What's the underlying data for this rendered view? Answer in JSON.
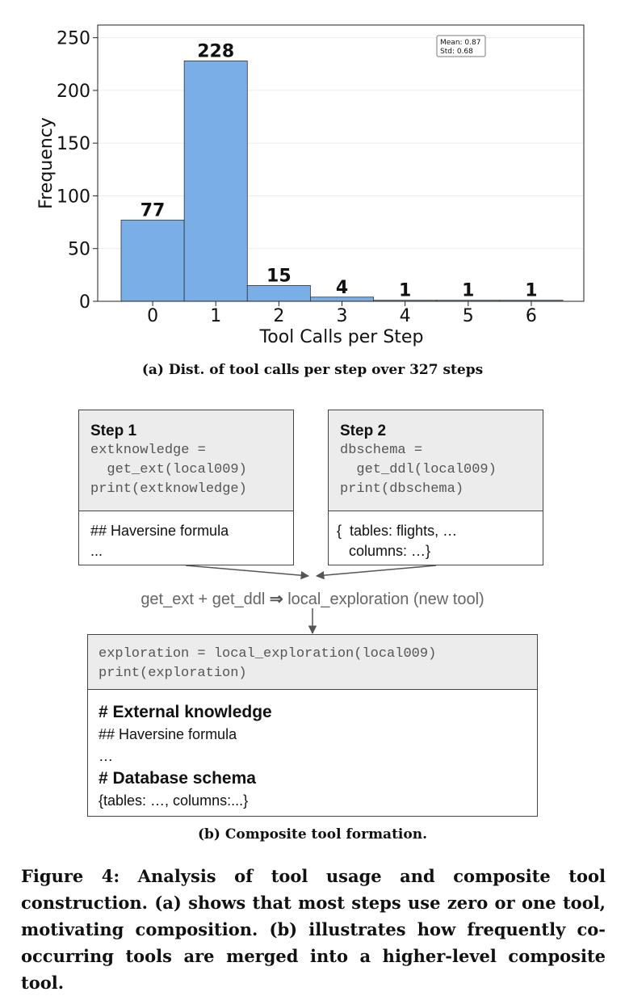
{
  "panel_a": {
    "caption": "(a) Dist. of tool calls per step over 327 steps"
  },
  "chart_data": {
    "type": "bar",
    "categories": [
      "0",
      "1",
      "2",
      "3",
      "4",
      "5",
      "6"
    ],
    "values": [
      77,
      228,
      15,
      4,
      1,
      1,
      1
    ],
    "data_labels": [
      "77",
      "228",
      "15",
      "4",
      "1",
      "1",
      "1"
    ],
    "xlabel": "Tool Calls per Step",
    "ylabel": "Frequency",
    "ylim": [
      0,
      262
    ],
    "yticks": [
      0,
      50,
      100,
      150,
      200,
      250
    ],
    "grid": true,
    "bar_color": "#7aaee6",
    "stats_box": {
      "mean": "Mean: 0.87",
      "std": "Std: 0.68",
      "placement": "top-right"
    }
  },
  "panel_b": {
    "step1": {
      "title": "Step 1",
      "code": [
        "extknowledge =",
        "  get_ext(local009)",
        "print(extknowledge)"
      ],
      "output": [
        "## Haversine formula",
        "..."
      ]
    },
    "step2": {
      "title": "Step 2",
      "code": [
        "dbschema =",
        "  get_ddl(local009)",
        "print(dbschema)"
      ],
      "output": [
        "{  tables: flights, …",
        "   columns: …}"
      ]
    },
    "compose": {
      "left": "get_ext + get_ddl",
      "arrow": "⇒",
      "right": "local_exploration (new tool)"
    },
    "composite": {
      "code": [
        "exploration = local_exploration(local009)",
        "print(exploration)"
      ],
      "output_heading1": "# External knowledge",
      "output_line1": "## Haversine formula",
      "output_line2": "…",
      "output_heading2": "# Database schema",
      "output_line3": "{tables: …, columns:...}"
    },
    "caption": "(b) Composite tool formation."
  },
  "figure_caption": "Figure 4: Analysis of tool usage and composite tool construction. (a) shows that most steps use zero or one tool, motivating composition. (b) illustrates how frequently co-occurring tools are merged into a higher-level composite tool."
}
